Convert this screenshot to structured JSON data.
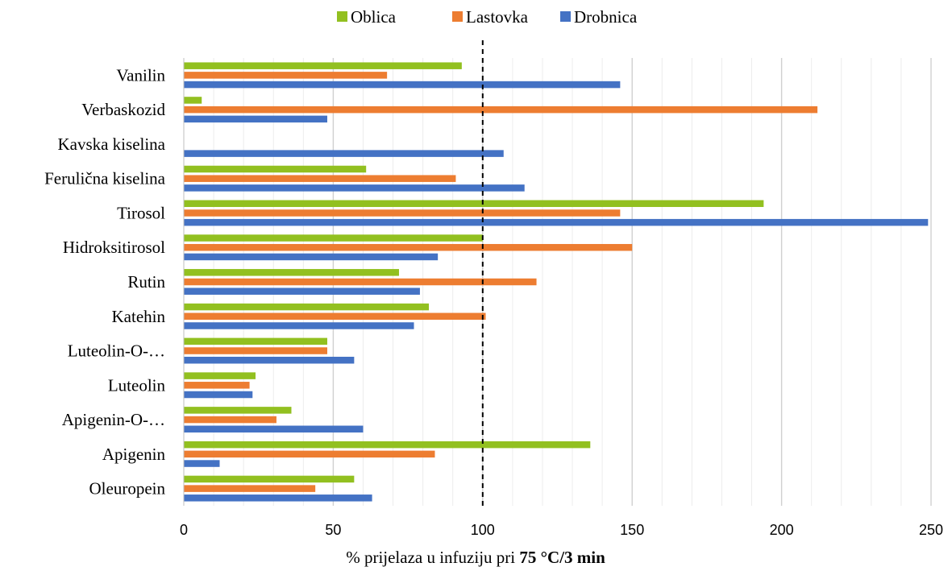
{
  "chart_data": {
    "type": "bar",
    "orientation": "horizontal",
    "categories": [
      "Vanilin",
      "Verbaskozid",
      "Kavska kiselina",
      "Ferulična kiselina",
      "Tirosol",
      "Hidroksitirosol",
      "Rutin",
      "Katehin",
      "Luteolin-O-…",
      "Luteolin",
      "Apigenin-O-…",
      "Apigenin",
      "Oleuropein"
    ],
    "series": [
      {
        "name": "Oblica",
        "color": "#92c020",
        "values": [
          93,
          6,
          0,
          61,
          194,
          100,
          72,
          82,
          48,
          24,
          36,
          136,
          57
        ]
      },
      {
        "name": "Lastovka",
        "color": "#ed7d31",
        "values": [
          68,
          212,
          0,
          91,
          146,
          150,
          118,
          101,
          48,
          22,
          31,
          84,
          44
        ]
      },
      {
        "name": "Drobnica",
        "color": "#4472c4",
        "values": [
          146,
          48,
          107,
          114,
          249,
          85,
          79,
          77,
          57,
          23,
          60,
          12,
          63
        ]
      }
    ],
    "xlim": [
      0,
      250
    ],
    "xticks": [
      0,
      50,
      100,
      150,
      200,
      250
    ],
    "xlabel_prefix": "% prijelaza u infuziju pri ",
    "xlabel_bold": "75 °C/3 min",
    "reference_line": 100,
    "legend_position": "top",
    "grid": "vertical"
  }
}
